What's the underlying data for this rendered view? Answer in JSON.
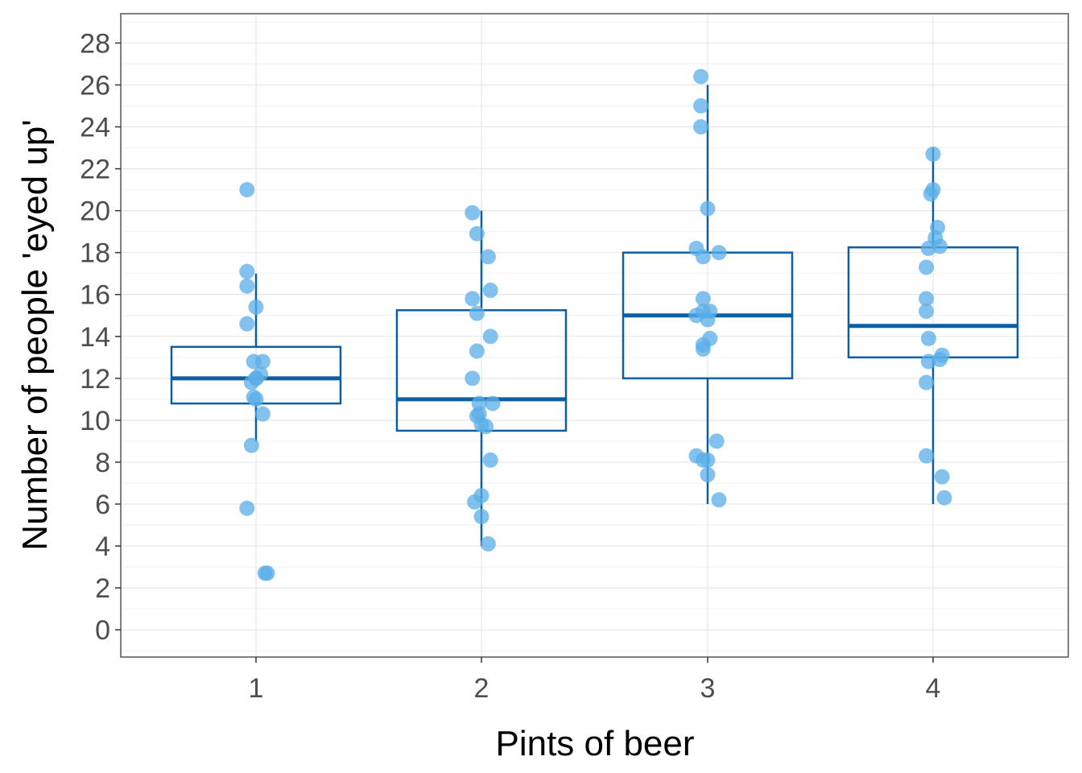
{
  "chart_data": {
    "type": "box",
    "xlabel": "Pints of beer",
    "ylabel": "Number of people 'eyed up'",
    "ylim": [
      -1.3,
      29.4
    ],
    "yticks": [
      0,
      2,
      4,
      6,
      8,
      10,
      12,
      14,
      16,
      18,
      20,
      22,
      24,
      26,
      28
    ],
    "categories": [
      "1",
      "2",
      "3",
      "4"
    ],
    "grid": true,
    "colors": {
      "box": "#0b5fa5",
      "points": "#5aaee8",
      "grid": "#e6e6e6",
      "panel_border": "#555555"
    },
    "boxes": [
      {
        "category": "1",
        "whisker_low": 9,
        "q1": 10.8,
        "median": 12,
        "q3": 13.5,
        "whisker_high": 17
      },
      {
        "category": "2",
        "whisker_low": 4,
        "q1": 9.5,
        "median": 11,
        "q3": 15.25,
        "whisker_high": 20
      },
      {
        "category": "3",
        "whisker_low": 6,
        "q1": 12,
        "median": 15,
        "q3": 18,
        "whisker_high": 26
      },
      {
        "category": "4",
        "whisker_low": 6,
        "q1": 13,
        "median": 14.5,
        "q3": 18.25,
        "whisker_high": 23
      }
    ],
    "points": [
      {
        "category": "1",
        "jitter": [
          -0.04,
          -0.04,
          -0.04,
          0.0,
          -0.04,
          -0.01,
          0.03,
          0.02,
          0.0,
          -0.02,
          -0.01,
          0.0,
          0.0,
          0.03,
          -0.02,
          -0.04,
          0.04,
          0.05
        ],
        "values": [
          21,
          17.1,
          16.4,
          15.4,
          14.6,
          12.8,
          12.8,
          12.2,
          12.0,
          11.8,
          11.1,
          11.0,
          12.0,
          10.3,
          8.8,
          5.8,
          2.7,
          2.7
        ]
      },
      {
        "category": "2",
        "jitter": [
          -0.04,
          -0.02,
          0.03,
          0.04,
          -0.04,
          -0.02,
          0.04,
          -0.02,
          -0.04,
          -0.01,
          0.05,
          -0.01,
          -0.02,
          0.0,
          0.02,
          0.04,
          0.0,
          -0.03,
          0.0,
          0.03
        ],
        "values": [
          19.9,
          18.9,
          17.8,
          16.2,
          15.8,
          15.1,
          14.0,
          13.3,
          12.0,
          10.8,
          10.8,
          10.3,
          10.2,
          9.8,
          9.7,
          8.1,
          6.4,
          6.1,
          5.4,
          4.1
        ]
      },
      {
        "category": "3",
        "jitter": [
          -0.03,
          -0.03,
          -0.03,
          0.0,
          -0.05,
          -0.02,
          0.05,
          -0.05,
          -0.02,
          -0.02,
          0.01,
          0.0,
          -0.02,
          0.01,
          -0.02,
          -0.02,
          0.04,
          -0.05,
          0.0,
          0.0,
          0.05
        ],
        "values": [
          26.4,
          25.0,
          24.0,
          20.1,
          18.2,
          17.8,
          18.0,
          15.0,
          15.8,
          15.2,
          15.2,
          14.8,
          13.6,
          13.9,
          13.4,
          8.1,
          9.0,
          8.3,
          8.1,
          7.4,
          6.2
        ]
      },
      {
        "category": "4",
        "jitter": [
          0.0,
          -0.01,
          0.0,
          0.02,
          0.01,
          -0.02,
          0.03,
          -0.03,
          -0.03,
          -0.03,
          -0.02,
          0.04,
          0.03,
          -0.02,
          -0.03,
          -0.03,
          0.04,
          0.05
        ],
        "values": [
          22.7,
          20.8,
          21.0,
          19.2,
          18.7,
          18.2,
          18.3,
          17.3,
          15.8,
          15.2,
          13.9,
          13.1,
          12.9,
          12.8,
          11.8,
          8.3,
          7.3,
          6.3
        ]
      }
    ]
  }
}
